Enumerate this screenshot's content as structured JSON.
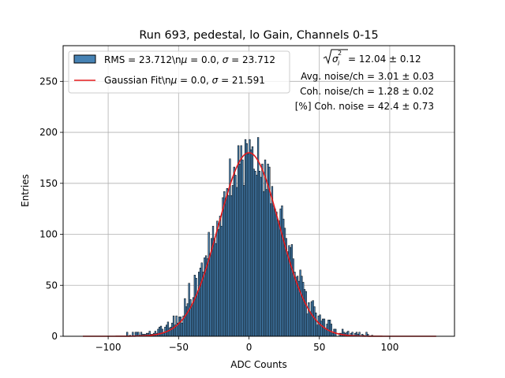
{
  "chart_data": {
    "type": "bar",
    "title": "Run 693, pedestal, lo Gain, Channels 0-15",
    "xlabel": "ADC Counts",
    "ylabel": "Entries",
    "xlim": [
      -132,
      146
    ],
    "ylim": [
      0,
      285
    ],
    "xticks": [
      -100,
      -50,
      0,
      50,
      100
    ],
    "yticks": [
      0,
      50,
      100,
      150,
      200,
      250
    ],
    "xtick_labels": [
      "−100",
      "−50",
      "0",
      "50",
      "100"
    ],
    "ytick_labels": [
      "0",
      "50",
      "100",
      "150",
      "200",
      "250"
    ],
    "grid": true,
    "legend_position": "top-left",
    "bin_width": 1,
    "histogram": {
      "name": "RMS = 23.712\\nμ = 0.0, σ = 23.712",
      "color": "#4682b4",
      "edge_color": "#000000",
      "mu": 0.0,
      "sigma": 23.712,
      "peak": 180,
      "range": [
        -118,
        133
      ],
      "seed": 693
    },
    "fit": {
      "name": "Gaussian Fit\\nμ = 0.0, σ = 21.591",
      "color": "#e41a1c",
      "mu": 0.0,
      "sigma": 21.591,
      "amplitude": 180,
      "range": [
        -118,
        133
      ]
    },
    "legend": {
      "entries": [
        {
          "label_prefix": "RMS = 23.712\\n",
          "label_suffix": " = 0.0, ",
          "sigma_text": " = 23.712"
        },
        {
          "label_prefix": "Gaussian Fit\\n",
          "label_suffix": " = 0.0, ",
          "sigma_text": " = 21.591"
        }
      ],
      "mu_symbol": "μ",
      "sigma_symbol": "σ"
    },
    "annotations": {
      "sigma_sq_label": "σ",
      "sigma_sub": "i",
      "sigma_sup": "2",
      "sigma_sq_value": " = 12.04 ± 0.12",
      "avg_noise": "Avg. noise/ch = 3.01 ± 0.03",
      "coh_noise": "Coh. noise/ch = 1.28 ± 0.02",
      "coh_pct": "[%] Coh. noise = 42.4 ± 0.73"
    }
  }
}
